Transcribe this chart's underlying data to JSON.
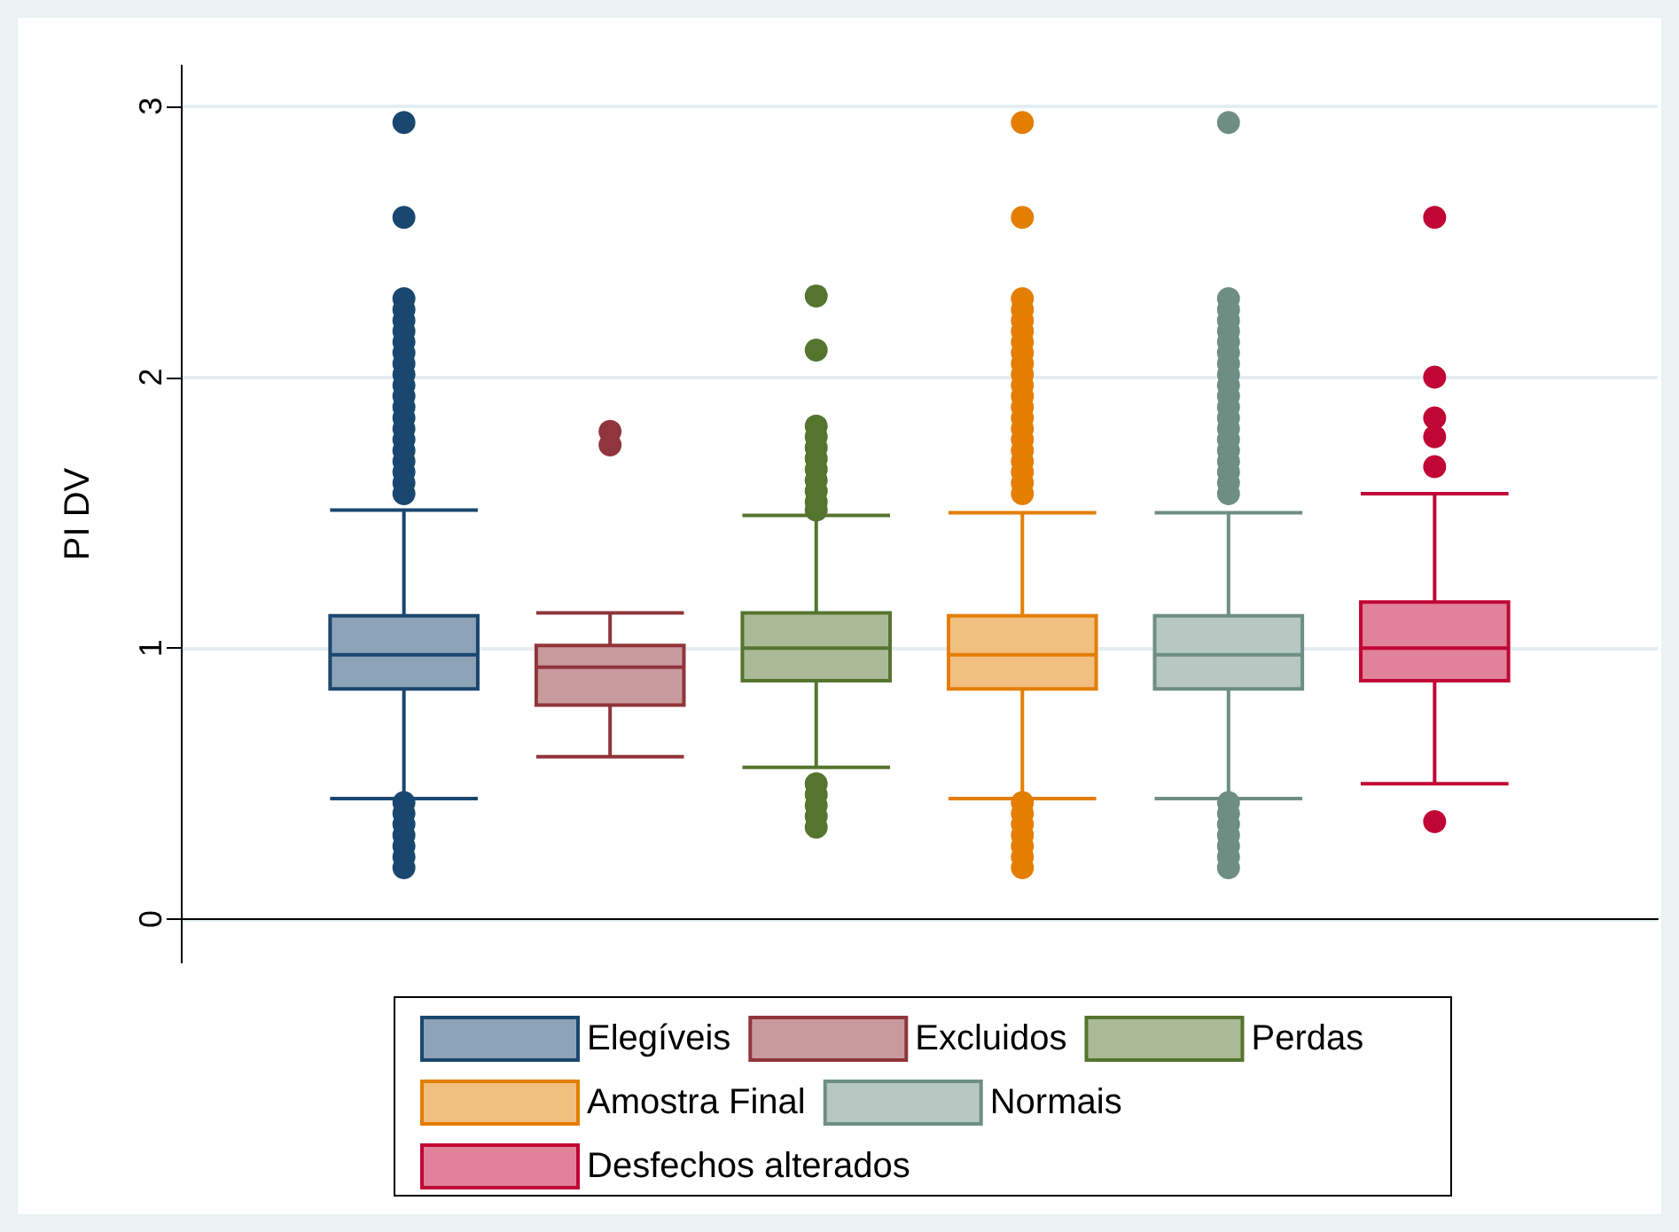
{
  "chart_data": {
    "type": "box",
    "ylabel": "PI DV",
    "categories": [
      null
    ],
    "ylim": [
      -0.16,
      3.15
    ],
    "yticks": [
      0,
      1,
      2,
      3
    ],
    "grid": "y",
    "legend": "bottom",
    "marker": "circle",
    "series": [
      {
        "name": "Elegíveis",
        "color": "#1a476f",
        "boxes": [
          {
            "low": 0.445,
            "q1": 0.85,
            "median": 0.976,
            "q3": 1.12,
            "high": 1.51,
            "outliers": [
              2.94,
              2.59,
              2.29,
              2.25,
              2.21,
              2.17,
              2.13,
              2.09,
              2.05,
              2.01,
              1.97,
              1.93,
              1.89,
              1.85,
              1.81,
              1.77,
              1.73,
              1.69,
              1.65,
              1.61,
              1.57,
              0.43,
              0.39,
              0.35,
              0.31,
              0.27,
              0.23,
              0.19
            ]
          }
        ]
      },
      {
        "name": "Excluidos",
        "color": "#90353b",
        "boxes": [
          {
            "low": 0.6,
            "q1": 0.79,
            "median": 0.93,
            "q3": 1.01,
            "high": 1.13,
            "outliers": [
              1.8,
              1.75
            ]
          }
        ]
      },
      {
        "name": "Perdas",
        "color": "#55752f",
        "boxes": [
          {
            "low": 0.56,
            "q1": 0.88,
            "median": 1.0,
            "q3": 1.13,
            "high": 1.49,
            "outliers": [
              2.3,
              2.1,
              1.82,
              1.78,
              1.74,
              1.7,
              1.66,
              1.62,
              1.58,
              1.54,
              1.51,
              0.5,
              0.46,
              0.42,
              0.38,
              0.34
            ]
          }
        ]
      },
      {
        "name": "Amostra Final",
        "color": "#e37e00",
        "boxes": [
          {
            "low": 0.445,
            "q1": 0.85,
            "median": 0.976,
            "q3": 1.12,
            "high": 1.5,
            "outliers": [
              2.94,
              2.59,
              2.29,
              2.25,
              2.21,
              2.17,
              2.13,
              2.09,
              2.05,
              2.01,
              1.97,
              1.93,
              1.89,
              1.85,
              1.81,
              1.77,
              1.73,
              1.69,
              1.65,
              1.61,
              1.57,
              0.43,
              0.39,
              0.35,
              0.31,
              0.27,
              0.23,
              0.19
            ]
          }
        ]
      },
      {
        "name": "Normais",
        "color": "#6e8e84",
        "boxes": [
          {
            "low": 0.445,
            "q1": 0.85,
            "median": 0.976,
            "q3": 1.12,
            "high": 1.5,
            "outliers": [
              2.94,
              2.29,
              2.25,
              2.21,
              2.17,
              2.13,
              2.09,
              2.05,
              2.01,
              1.97,
              1.93,
              1.89,
              1.85,
              1.81,
              1.77,
              1.73,
              1.69,
              1.65,
              1.61,
              1.57,
              0.43,
              0.39,
              0.35,
              0.31,
              0.27,
              0.23,
              0.19
            ]
          }
        ]
      },
      {
        "name": "Desfechos alterados",
        "color": "#c10534",
        "boxes": [
          {
            "low": 0.5,
            "q1": 0.88,
            "median": 1.0,
            "q3": 1.17,
            "high": 1.57,
            "outliers": [
              2.59,
              2.0,
              1.85,
              1.78,
              1.67,
              0.36
            ]
          }
        ]
      }
    ]
  }
}
